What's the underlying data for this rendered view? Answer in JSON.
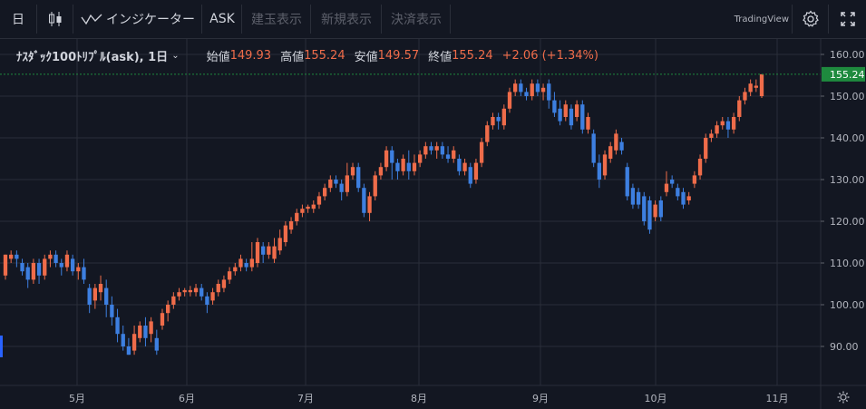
{
  "toolbar": {
    "interval": "日",
    "indicators": "インジケーター",
    "price_type": "ASK",
    "btn_position": "建玉表示",
    "btn_new": "新規表示",
    "btn_settle": "決済表示",
    "brand": "TradingView"
  },
  "legend": {
    "symbol": "ﾅｽﾀﾞｯｸ100ﾄﾘﾌﾟﾙ(ask), 1日",
    "open_label": "始値",
    "open": "149.93",
    "high_label": "高値",
    "high": "155.24",
    "low_label": "安値",
    "low": "149.57",
    "close_label": "終値",
    "close": "155.24",
    "change": "+2.06 (+1.34%)"
  },
  "colors": {
    "up": "#ef6c4a",
    "down": "#3d7fe0",
    "bg": "#131722",
    "grid": "#2a2e39",
    "last_price_badge": "#1e8a3e"
  },
  "chart_data": {
    "type": "candlestick",
    "last_price": 155.24,
    "ylim": [
      82,
      162
    ],
    "y_ticks": [
      "160.00",
      "150.00",
      "140.00",
      "130.00",
      "120.00",
      "110.00",
      "100.00",
      "90.00"
    ],
    "x_ticks": [
      "5月",
      "6月",
      "7月",
      "8月",
      "9月",
      "10月",
      "11月"
    ],
    "candles": [
      {
        "o": 107,
        "c": 112,
        "h": 112,
        "l": 106
      },
      {
        "o": 111,
        "c": 112,
        "h": 113,
        "l": 110
      },
      {
        "o": 112,
        "c": 111,
        "h": 113,
        "l": 109
      },
      {
        "o": 110,
        "c": 108,
        "h": 111,
        "l": 107
      },
      {
        "o": 109,
        "c": 106,
        "h": 110,
        "l": 104
      },
      {
        "o": 106,
        "c": 110,
        "h": 111,
        "l": 105
      },
      {
        "o": 110,
        "c": 107,
        "h": 111,
        "l": 105
      },
      {
        "o": 107,
        "c": 111,
        "h": 112,
        "l": 106
      },
      {
        "o": 111,
        "c": 112,
        "h": 113,
        "l": 109
      },
      {
        "o": 112,
        "c": 110,
        "h": 113,
        "l": 109
      },
      {
        "o": 110,
        "c": 109,
        "h": 111,
        "l": 107
      },
      {
        "o": 109,
        "c": 112,
        "h": 113,
        "l": 108
      },
      {
        "o": 111,
        "c": 108,
        "h": 112,
        "l": 107
      },
      {
        "o": 108,
        "c": 109,
        "h": 110,
        "l": 106
      },
      {
        "o": 109,
        "c": 106,
        "h": 111,
        "l": 105
      },
      {
        "o": 104,
        "c": 100,
        "h": 105,
        "l": 98
      },
      {
        "o": 101,
        "c": 104,
        "h": 105,
        "l": 99
      },
      {
        "o": 103,
        "c": 105,
        "h": 107,
        "l": 101
      },
      {
        "o": 104,
        "c": 100,
        "h": 106,
        "l": 97
      },
      {
        "o": 100,
        "c": 97,
        "h": 102,
        "l": 95
      },
      {
        "o": 97,
        "c": 93,
        "h": 99,
        "l": 91
      },
      {
        "o": 93,
        "c": 90,
        "h": 95,
        "l": 89
      },
      {
        "o": 90,
        "c": 88,
        "h": 92,
        "l": 88
      },
      {
        "o": 89,
        "c": 93,
        "h": 95,
        "l": 88
      },
      {
        "o": 92,
        "c": 95,
        "h": 96,
        "l": 91
      },
      {
        "o": 95,
        "c": 92,
        "h": 97,
        "l": 90
      },
      {
        "o": 93,
        "c": 96,
        "h": 97,
        "l": 91
      },
      {
        "o": 92,
        "c": 89,
        "h": 94,
        "l": 88
      },
      {
        "o": 95,
        "c": 98,
        "h": 99,
        "l": 94
      },
      {
        "o": 98,
        "c": 100,
        "h": 101,
        "l": 96
      },
      {
        "o": 100,
        "c": 102,
        "h": 103,
        "l": 99
      },
      {
        "o": 102,
        "c": 103,
        "h": 104,
        "l": 101
      },
      {
        "o": 103,
        "c": 103.5,
        "h": 104,
        "l": 102
      },
      {
        "o": 103,
        "c": 103.5,
        "h": 104.5,
        "l": 102
      },
      {
        "o": 103,
        "c": 104,
        "h": 105,
        "l": 102
      },
      {
        "o": 104,
        "c": 102,
        "h": 105,
        "l": 101
      },
      {
        "o": 102,
        "c": 100,
        "h": 103,
        "l": 98
      },
      {
        "o": 101,
        "c": 103,
        "h": 104,
        "l": 100
      },
      {
        "o": 103,
        "c": 105,
        "h": 106,
        "l": 102
      },
      {
        "o": 104,
        "c": 106,
        "h": 107,
        "l": 103
      },
      {
        "o": 106,
        "c": 108,
        "h": 109,
        "l": 105
      },
      {
        "o": 108,
        "c": 109,
        "h": 110,
        "l": 107
      },
      {
        "o": 109,
        "c": 111,
        "h": 112,
        "l": 108
      },
      {
        "o": 110,
        "c": 109,
        "h": 111,
        "l": 108
      },
      {
        "o": 109,
        "c": 111,
        "h": 115,
        "l": 108
      },
      {
        "o": 110,
        "c": 115,
        "h": 116,
        "l": 109
      },
      {
        "o": 114,
        "c": 112,
        "h": 115,
        "l": 110
      },
      {
        "o": 112,
        "c": 114,
        "h": 115,
        "l": 111
      },
      {
        "o": 111,
        "c": 114,
        "h": 116,
        "l": 110
      },
      {
        "o": 113,
        "c": 116,
        "h": 118,
        "l": 112
      },
      {
        "o": 115,
        "c": 119,
        "h": 120,
        "l": 114
      },
      {
        "o": 118,
        "c": 120,
        "h": 121,
        "l": 117
      },
      {
        "o": 120,
        "c": 122,
        "h": 123,
        "l": 119
      },
      {
        "o": 122,
        "c": 123,
        "h": 124,
        "l": 121
      },
      {
        "o": 123,
        "c": 123.5,
        "h": 124,
        "l": 122
      },
      {
        "o": 123,
        "c": 124,
        "h": 125,
        "l": 122
      },
      {
        "o": 124,
        "c": 126,
        "h": 127,
        "l": 123
      },
      {
        "o": 126,
        "c": 128,
        "h": 129,
        "l": 125
      },
      {
        "o": 128,
        "c": 130,
        "h": 131,
        "l": 127
      },
      {
        "o": 130,
        "c": 129,
        "h": 131,
        "l": 128
      },
      {
        "o": 129,
        "c": 127,
        "h": 130,
        "l": 125
      },
      {
        "o": 127,
        "c": 131,
        "h": 134,
        "l": 126
      },
      {
        "o": 131,
        "c": 133,
        "h": 134,
        "l": 130
      },
      {
        "o": 133,
        "c": 128,
        "h": 134,
        "l": 127
      },
      {
        "o": 128,
        "c": 122,
        "h": 129,
        "l": 121
      },
      {
        "o": 122,
        "c": 126,
        "h": 127,
        "l": 120
      },
      {
        "o": 126,
        "c": 131,
        "h": 132,
        "l": 125
      },
      {
        "o": 131,
        "c": 133,
        "h": 134,
        "l": 130
      },
      {
        "o": 133,
        "c": 137,
        "h": 138,
        "l": 132
      },
      {
        "o": 137,
        "c": 134,
        "h": 138,
        "l": 130
      },
      {
        "o": 134,
        "c": 132,
        "h": 135,
        "l": 130
      },
      {
        "o": 132,
        "c": 135,
        "h": 136,
        "l": 131
      },
      {
        "o": 134,
        "c": 132,
        "h": 137,
        "l": 130
      },
      {
        "o": 132,
        "c": 134,
        "h": 136,
        "l": 131
      },
      {
        "o": 134,
        "c": 136,
        "h": 137,
        "l": 133
      },
      {
        "o": 136,
        "c": 138,
        "h": 139,
        "l": 135
      },
      {
        "o": 138,
        "c": 137,
        "h": 139,
        "l": 136
      },
      {
        "o": 137,
        "c": 138,
        "h": 139,
        "l": 135
      },
      {
        "o": 138,
        "c": 136,
        "h": 139,
        "l": 135
      },
      {
        "o": 136,
        "c": 135,
        "h": 138,
        "l": 134
      },
      {
        "o": 135,
        "c": 137,
        "h": 138,
        "l": 134
      },
      {
        "o": 135,
        "c": 132,
        "h": 136,
        "l": 131
      },
      {
        "o": 132,
        "c": 134,
        "h": 135,
        "l": 131
      },
      {
        "o": 133,
        "c": 129,
        "h": 134,
        "l": 128
      },
      {
        "o": 130,
        "c": 134,
        "h": 135,
        "l": 129
      },
      {
        "o": 134,
        "c": 139,
        "h": 140,
        "l": 133
      },
      {
        "o": 139,
        "c": 143,
        "h": 144,
        "l": 138
      },
      {
        "o": 143,
        "c": 145,
        "h": 146,
        "l": 142
      },
      {
        "o": 145,
        "c": 144,
        "h": 146,
        "l": 142
      },
      {
        "o": 143,
        "c": 147,
        "h": 148,
        "l": 142
      },
      {
        "o": 147,
        "c": 151,
        "h": 152,
        "l": 146
      },
      {
        "o": 151,
        "c": 153,
        "h": 154,
        "l": 150
      },
      {
        "o": 153,
        "c": 151,
        "h": 154,
        "l": 150
      },
      {
        "o": 151,
        "c": 150,
        "h": 152,
        "l": 149
      },
      {
        "o": 150,
        "c": 153,
        "h": 154,
        "l": 149
      },
      {
        "o": 153,
        "c": 151,
        "h": 154,
        "l": 150
      },
      {
        "o": 151,
        "c": 152,
        "h": 153,
        "l": 149
      },
      {
        "o": 153,
        "c": 149,
        "h": 154,
        "l": 147
      },
      {
        "o": 149,
        "c": 146,
        "h": 151,
        "l": 145
      },
      {
        "o": 147,
        "c": 144,
        "h": 149,
        "l": 143
      },
      {
        "o": 145,
        "c": 148,
        "h": 149,
        "l": 144
      },
      {
        "o": 147,
        "c": 143,
        "h": 148,
        "l": 142
      },
      {
        "o": 145,
        "c": 148,
        "h": 149,
        "l": 144
      },
      {
        "o": 148,
        "c": 142,
        "h": 149,
        "l": 141
      },
      {
        "o": 142,
        "c": 145,
        "h": 146,
        "l": 141
      },
      {
        "o": 141,
        "c": 134,
        "h": 142,
        "l": 133
      },
      {
        "o": 134,
        "c": 130,
        "h": 136,
        "l": 128
      },
      {
        "o": 131,
        "c": 136,
        "h": 137,
        "l": 130
      },
      {
        "o": 135,
        "c": 138,
        "h": 139,
        "l": 134
      },
      {
        "o": 137,
        "c": 141,
        "h": 142,
        "l": 136
      },
      {
        "o": 139,
        "c": 137,
        "h": 140,
        "l": 136
      },
      {
        "o": 133,
        "c": 126,
        "h": 134,
        "l": 125
      },
      {
        "o": 128,
        "c": 124,
        "h": 129,
        "l": 123
      },
      {
        "o": 127,
        "c": 124,
        "h": 128,
        "l": 123
      },
      {
        "o": 126,
        "c": 120,
        "h": 127,
        "l": 119
      },
      {
        "o": 125,
        "c": 118,
        "h": 126,
        "l": 117
      },
      {
        "o": 121,
        "c": 124,
        "h": 125,
        "l": 120
      },
      {
        "o": 125,
        "c": 121,
        "h": 126,
        "l": 120
      },
      {
        "o": 127,
        "c": 129,
        "h": 132,
        "l": 126
      },
      {
        "o": 130,
        "c": 129,
        "h": 131,
        "l": 128
      },
      {
        "o": 128,
        "c": 126,
        "h": 129,
        "l": 125
      },
      {
        "o": 127,
        "c": 124,
        "h": 128,
        "l": 123
      },
      {
        "o": 125,
        "c": 126,
        "h": 127,
        "l": 124
      },
      {
        "o": 129,
        "c": 131,
        "h": 132,
        "l": 128
      },
      {
        "o": 131,
        "c": 135,
        "h": 136,
        "l": 130
      },
      {
        "o": 135,
        "c": 140,
        "h": 141,
        "l": 134
      },
      {
        "o": 140,
        "c": 141,
        "h": 142,
        "l": 139
      },
      {
        "o": 141,
        "c": 143,
        "h": 144,
        "l": 140
      },
      {
        "o": 143,
        "c": 144,
        "h": 145,
        "l": 142
      },
      {
        "o": 144,
        "c": 142,
        "h": 145,
        "l": 140
      },
      {
        "o": 142,
        "c": 145,
        "h": 146,
        "l": 141
      },
      {
        "o": 145,
        "c": 149,
        "h": 150,
        "l": 144
      },
      {
        "o": 149,
        "c": 151,
        "h": 152,
        "l": 148
      },
      {
        "o": 151,
        "c": 153,
        "h": 154,
        "l": 150
      },
      {
        "o": 152,
        "c": 152.5,
        "h": 154,
        "l": 151
      },
      {
        "o": 150,
        "c": 155.24,
        "h": 155.24,
        "l": 149.57
      }
    ]
  }
}
